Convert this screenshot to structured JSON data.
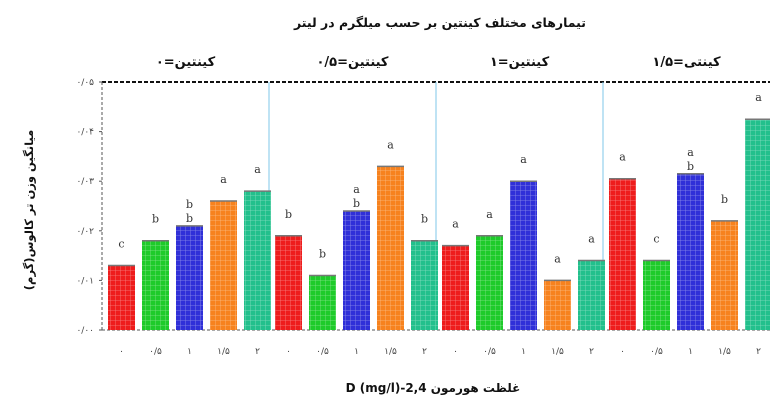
{
  "chart_data": {
    "type": "bar",
    "title": "تیمارهای مختلف کینتین بر حسب میلگرم در لیتر",
    "xlabel": "غلظت هورمون 2,4-D (mg/l)",
    "ylabel": "میانگین وزن تر کالوس(گرم)",
    "ylim": [
      0,
      0.05
    ],
    "yticks": [
      "۰/۰۰",
      "۰/۰۱",
      "۰/۰۲",
      "۰/۰۳",
      "۰/۰۴",
      "۰/۰۵"
    ],
    "ytick_values": [
      0,
      0.01,
      0.02,
      0.03,
      0.04,
      0.05
    ],
    "categories": [
      "۰",
      "۰/۵",
      "۱",
      "۱/۵",
      "۲"
    ],
    "colors": [
      "#ee1c1c",
      "#1ecb2a",
      "#3030d8",
      "#f7821e",
      "#22c08c"
    ],
    "panels": [
      {
        "label": "کینتین=۰",
        "values": [
          0.013,
          0.018,
          0.021,
          0.026,
          0.028
        ],
        "letters": [
          "c",
          "b",
          "b",
          "a",
          "a"
        ],
        "letters2": [
          "",
          "",
          "b",
          "",
          ""
        ]
      },
      {
        "label": "کینتین=۰/۵",
        "values": [
          0.019,
          0.011,
          0.024,
          0.033,
          0.018
        ],
        "letters": [
          "b",
          "b",
          "a",
          "a",
          "b"
        ],
        "letters2": [
          "",
          "",
          "b",
          "",
          ""
        ]
      },
      {
        "label": "کینتین=۱",
        "values": [
          0.017,
          0.019,
          0.03,
          0.01,
          0.014
        ],
        "letters": [
          "a",
          "a",
          "a",
          "a",
          "a"
        ],
        "letters2": [
          "",
          "",
          "",
          "",
          ""
        ]
      },
      {
        "label": "کینتی=۱/۵",
        "values": [
          0.0305,
          0.014,
          0.0315,
          0.022,
          0.0425
        ],
        "letters": [
          "a",
          "c",
          "a",
          "b",
          "a"
        ],
        "letters2": [
          "",
          "",
          "b",
          "",
          ""
        ]
      }
    ],
    "grid": false,
    "legend": "none"
  }
}
